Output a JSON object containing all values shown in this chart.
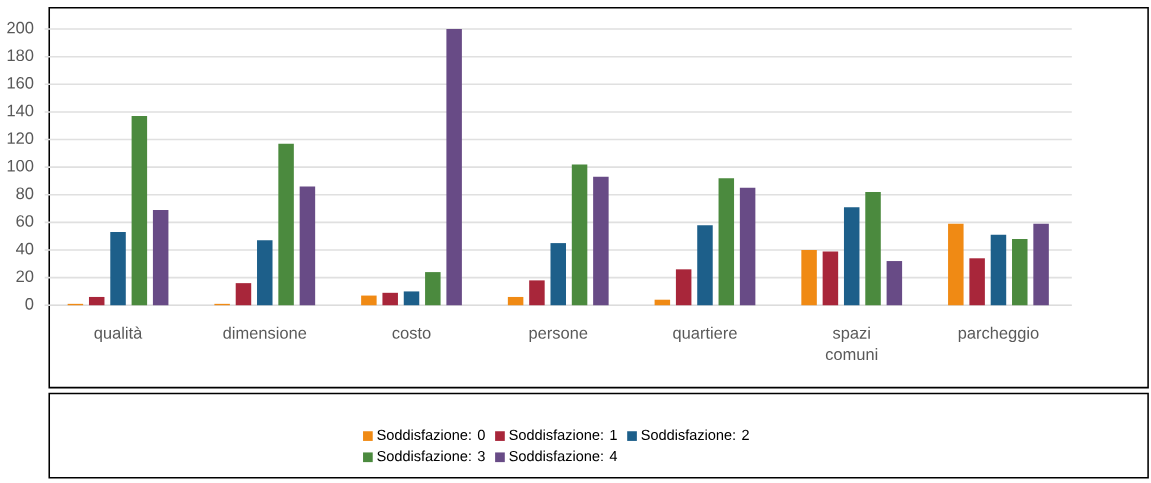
{
  "chart_data": {
    "type": "bar",
    "categories": [
      "qualità",
      "dimensione",
      "costo",
      "persone",
      "quartiere",
      "spazi comuni",
      "parcheggio"
    ],
    "series": [
      {
        "name": "Soddisfazione: 0",
        "color": "#f08a14",
        "values": [
          1,
          1,
          7,
          6,
          4,
          40,
          59
        ]
      },
      {
        "name": "Soddisfazione: 1",
        "color": "#a8263a",
        "values": [
          6,
          16,
          9,
          18,
          26,
          39,
          34
        ]
      },
      {
        "name": "Soddisfazione: 2",
        "color": "#1d5f8a",
        "values": [
          53,
          47,
          10,
          45,
          58,
          71,
          51
        ]
      },
      {
        "name": "Soddisfazione: 3",
        "color": "#4b8a3e",
        "values": [
          137,
          117,
          24,
          102,
          92,
          82,
          48
        ]
      },
      {
        "name": "Soddisfazione: 4",
        "color": "#684b86",
        "values": [
          69,
          86,
          200,
          93,
          85,
          32,
          59
        ]
      }
    ],
    "ylim": [
      0,
      200
    ],
    "yticks": [
      0,
      20,
      40,
      60,
      80,
      100,
      120,
      140,
      160,
      180,
      200
    ],
    "grid": "y",
    "legend": "bottom"
  }
}
